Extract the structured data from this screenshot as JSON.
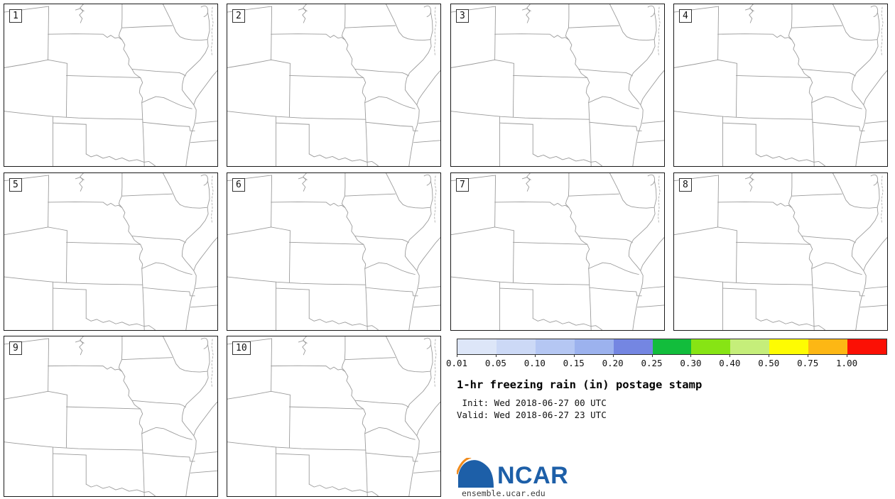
{
  "panels": [
    {
      "label": "1"
    },
    {
      "label": "2"
    },
    {
      "label": "3"
    },
    {
      "label": "4"
    },
    {
      "label": "5"
    },
    {
      "label": "6"
    },
    {
      "label": "7"
    },
    {
      "label": "8"
    },
    {
      "label": "9"
    },
    {
      "label": "10"
    }
  ],
  "colorbar": {
    "ticks": [
      "0.01",
      "0.05",
      "0.10",
      "0.15",
      "0.20",
      "0.25",
      "0.30",
      "0.40",
      "0.50",
      "0.75",
      "1.00"
    ],
    "segment_colors": [
      "#dde6f8",
      "#ccd9f6",
      "#b5c7f3",
      "#9cb2ee",
      "#7486e2",
      "#12bd3c",
      "#87e414",
      "#c5ee7a",
      "#fefc02",
      "#fdb714",
      "#fb1005"
    ]
  },
  "title": "1-hr freezing rain (in) postage stamp",
  "init_line": " Init: Wed 2018-06-27 00 UTC",
  "valid_line": "Valid: Wed 2018-06-27 23 UTC",
  "logo": {
    "wordmark": "NCAR",
    "url": "ensemble.ucar.edu",
    "blue": "#1d5fa8",
    "orange": "#f08b1d"
  }
}
